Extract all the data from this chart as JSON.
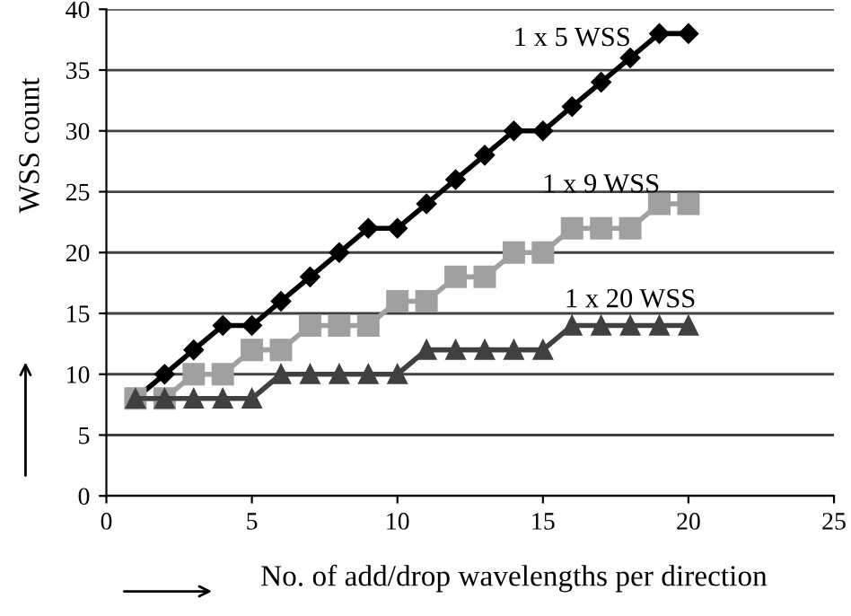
{
  "chart_data": {
    "type": "line",
    "xlabel": "No. of add/drop wavelengths per direction",
    "ylabel": "WSS count",
    "x": [
      1,
      2,
      3,
      4,
      5,
      6,
      7,
      8,
      9,
      10,
      11,
      12,
      13,
      14,
      15,
      16,
      17,
      18,
      19,
      20
    ],
    "series": [
      {
        "name": "1 x 5 WSS",
        "color": "#000000",
        "marker": "diamond",
        "values": [
          8,
          10,
          12,
          14,
          14,
          16,
          18,
          20,
          22,
          22,
          24,
          26,
          28,
          30,
          30,
          32,
          34,
          36,
          38,
          38
        ]
      },
      {
        "name": "1 x 9 WSS",
        "color": "#a0a0a0",
        "marker": "square",
        "values": [
          8,
          8,
          10,
          10,
          12,
          12,
          14,
          14,
          14,
          16,
          16,
          18,
          18,
          20,
          20,
          22,
          22,
          22,
          24,
          24
        ]
      },
      {
        "name": "1 x 20 WSS",
        "color": "#404040",
        "marker": "triangle",
        "values": [
          8,
          8,
          8,
          8,
          8,
          10,
          10,
          10,
          10,
          10,
          12,
          12,
          12,
          12,
          12,
          14,
          14,
          14,
          14,
          14
        ]
      }
    ],
    "xlim": [
      0,
      25
    ],
    "xticks": [
      0,
      5,
      10,
      15,
      20,
      25
    ],
    "ylim": [
      0,
      40
    ],
    "yticks": [
      0,
      5,
      10,
      15,
      20,
      25,
      30,
      35,
      40
    ],
    "grid": "y",
    "legend": false,
    "line_style": "solid"
  }
}
